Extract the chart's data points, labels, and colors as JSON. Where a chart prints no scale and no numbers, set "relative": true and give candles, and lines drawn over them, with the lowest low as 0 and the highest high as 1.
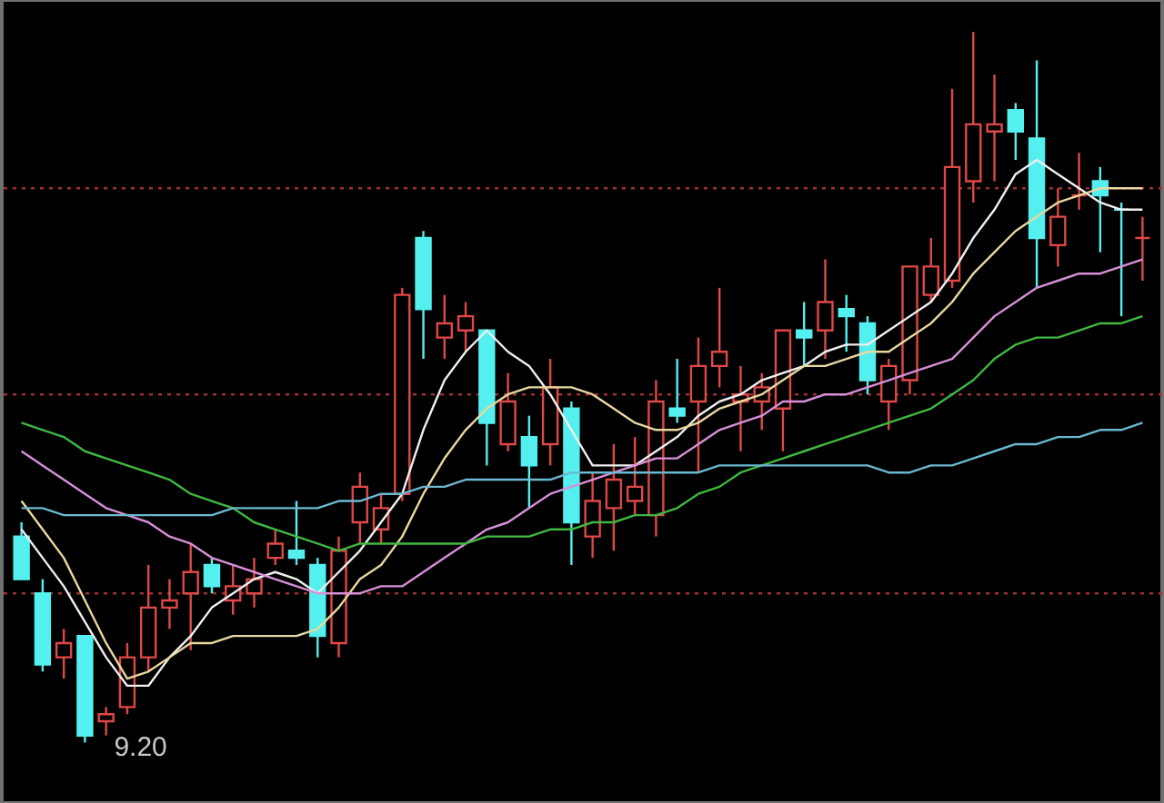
{
  "chart_data": {
    "type": "candlestick",
    "relative": true,
    "categories": [
      null,
      null,
      null,
      null,
      null,
      null,
      null,
      null,
      null,
      null,
      null,
      null,
      null,
      null,
      null,
      null,
      null,
      null,
      null,
      null,
      null,
      null,
      null,
      null,
      null,
      null,
      null,
      null,
      null,
      null,
      null,
      null,
      null,
      null,
      null,
      null,
      null,
      null,
      null,
      null,
      null,
      null,
      null,
      null,
      null,
      null,
      null,
      null,
      null,
      null,
      null,
      null,
      null,
      null
    ],
    "ohlc": [
      [
        0.29,
        0.31,
        0.23,
        0.23
      ],
      [
        0.21,
        0.23,
        0.1,
        0.11
      ],
      [
        0.12,
        0.16,
        0.09,
        0.14
      ],
      [
        0.15,
        0.15,
        0,
        0.01
      ],
      [
        0.03,
        0.05,
        0.01,
        0.04
      ],
      [
        0.05,
        0.14,
        0.04,
        0.12
      ],
      [
        0.12,
        0.25,
        0.1,
        0.19
      ],
      [
        0.19,
        0.23,
        0.16,
        0.2
      ],
      [
        0.21,
        0.28,
        0.13,
        0.24
      ],
      [
        0.25,
        0.26,
        0.21,
        0.22
      ],
      [
        0.2,
        0.25,
        0.18,
        0.22
      ],
      [
        0.21,
        0.26,
        0.19,
        0.23
      ],
      [
        0.26,
        0.3,
        0.25,
        0.28
      ],
      [
        0.27,
        0.34,
        0.25,
        0.26
      ],
      [
        0.25,
        0.26,
        0.12,
        0.15
      ],
      [
        0.14,
        0.29,
        0.12,
        0.27
      ],
      [
        0.31,
        0.38,
        0.28,
        0.36
      ],
      [
        0.3,
        0.35,
        0.28,
        0.33
      ],
      [
        0.35,
        0.64,
        0.34,
        0.63
      ],
      [
        0.71,
        0.72,
        0.54,
        0.61
      ],
      [
        0.57,
        0.63,
        0.54,
        0.59
      ],
      [
        0.58,
        0.62,
        0.55,
        0.6
      ],
      [
        0.58,
        0.58,
        0.39,
        0.45
      ],
      [
        0.42,
        0.52,
        0.41,
        0.48
      ],
      [
        0.43,
        0.46,
        0.33,
        0.39
      ],
      [
        0.42,
        0.54,
        0.39,
        0.5
      ],
      [
        0.47,
        0.48,
        0.25,
        0.31
      ],
      [
        0.29,
        0.38,
        0.26,
        0.34
      ],
      [
        0.33,
        0.42,
        0.27,
        0.37
      ],
      [
        0.34,
        0.43,
        0.32,
        0.36
      ],
      [
        0.32,
        0.51,
        0.29,
        0.48
      ],
      [
        0.47,
        0.54,
        0.45,
        0.46
      ],
      [
        0.48,
        0.57,
        0.38,
        0.53
      ],
      [
        0.53,
        0.64,
        0.5,
        0.55
      ],
      [
        0.48,
        0.53,
        0.41,
        0.49
      ],
      [
        0.48,
        0.52,
        0.44,
        0.5
      ],
      [
        0.47,
        0.58,
        0.41,
        0.58
      ],
      [
        0.58,
        0.62,
        0.53,
        0.57
      ],
      [
        0.58,
        0.68,
        0.54,
        0.62
      ],
      [
        0.61,
        0.63,
        0.55,
        0.6
      ],
      [
        0.59,
        0.6,
        0.49,
        0.51
      ],
      [
        0.48,
        0.54,
        0.44,
        0.53
      ],
      [
        0.51,
        0.67,
        0.49,
        0.67
      ],
      [
        0.63,
        0.71,
        0.62,
        0.67
      ],
      [
        0.65,
        0.92,
        0.64,
        0.81
      ],
      [
        0.79,
        1,
        0.76,
        0.87
      ],
      [
        0.86,
        0.94,
        0.79,
        0.87
      ],
      [
        0.89,
        0.9,
        0.82,
        0.86
      ],
      [
        0.85,
        0.96,
        0.64,
        0.71
      ],
      [
        0.7,
        0.78,
        0.67,
        0.74
      ],
      [
        0.77,
        0.83,
        0.75,
        0.77
      ],
      [
        0.79,
        0.81,
        0.69,
        0.77
      ],
      [
        0.75,
        0.76,
        0.6,
        0.75
      ],
      [
        0.71,
        0.74,
        0.65,
        0.71
      ]
    ],
    "colors": [
      "#54f0f0",
      "#54f0f0",
      "#e04848",
      "#54f0f0",
      "#e04848",
      "#e04848",
      "#e04848",
      "#e04848",
      "#e04848",
      "#54f0f0",
      "#e04848",
      "#e04848",
      "#e04848",
      "#54f0f0",
      "#54f0f0",
      "#e04848",
      "#e04848",
      "#e04848",
      "#e04848",
      "#54f0f0",
      "#e04848",
      "#e04848",
      "#54f0f0",
      "#e04848",
      "#54f0f0",
      "#e04848",
      "#54f0f0",
      "#e04848",
      "#e04848",
      "#e04848",
      "#e04848",
      "#54f0f0",
      "#e04848",
      "#e04848",
      "#e04848",
      "#e04848",
      "#e04848",
      "#54f0f0",
      "#e04848",
      "#54f0f0",
      "#54f0f0",
      "#e04848",
      "#e04848",
      "#e04848",
      "#e04848",
      "#e04848",
      "#e04848",
      "#54f0f0",
      "#54f0f0",
      "#e04848",
      "#e04848",
      "#54f0f0",
      "#54f0f0",
      "#e04848"
    ],
    "series": [
      {
        "type": "line",
        "color": "#f0f0f0",
        "values": [
          0.3,
          0.26,
          0.22,
          0.17,
          0.12,
          0.08,
          0.08,
          0.12,
          0.15,
          0.19,
          0.21,
          0.23,
          0.24,
          0.23,
          0.21,
          0.24,
          0.27,
          0.31,
          0.35,
          0.44,
          0.51,
          0.55,
          0.58,
          0.55,
          0.53,
          0.49,
          0.44,
          0.39,
          0.39,
          0.39,
          0.41,
          0.43,
          0.46,
          0.48,
          0.49,
          0.51,
          0.52,
          0.53,
          0.55,
          0.56,
          0.56,
          0.58,
          0.6,
          0.62,
          0.66,
          0.71,
          0.75,
          0.8,
          0.82,
          0.8,
          0.78,
          0.76,
          0.75,
          0.75
        ]
      },
      {
        "type": "line",
        "color": "#e8d8a0",
        "values": [
          0.34,
          0.3,
          0.26,
          0.2,
          0.14,
          0.09,
          0.1,
          0.12,
          0.14,
          0.14,
          0.15,
          0.15,
          0.15,
          0.15,
          0.16,
          0.19,
          0.23,
          0.25,
          0.29,
          0.35,
          0.4,
          0.44,
          0.47,
          0.49,
          0.5,
          0.5,
          0.5,
          0.49,
          0.47,
          0.45,
          0.44,
          0.44,
          0.45,
          0.47,
          0.48,
          0.49,
          0.51,
          0.53,
          0.53,
          0.54,
          0.55,
          0.55,
          0.57,
          0.59,
          0.62,
          0.66,
          0.69,
          0.72,
          0.74,
          0.76,
          0.77,
          0.78,
          0.78,
          0.78
        ]
      },
      {
        "type": "line",
        "color": "#d890d8",
        "values": [
          0.41,
          0.39,
          0.37,
          0.35,
          0.33,
          0.32,
          0.31,
          0.29,
          0.28,
          0.26,
          0.25,
          0.24,
          0.23,
          0.22,
          0.21,
          0.21,
          0.21,
          0.22,
          0.22,
          0.24,
          0.26,
          0.28,
          0.3,
          0.31,
          0.33,
          0.35,
          0.36,
          0.37,
          0.38,
          0.39,
          0.4,
          0.4,
          0.42,
          0.44,
          0.45,
          0.46,
          0.48,
          0.48,
          0.49,
          0.49,
          0.5,
          0.51,
          0.52,
          0.53,
          0.54,
          0.57,
          0.6,
          0.62,
          0.64,
          0.65,
          0.66,
          0.66,
          0.67,
          0.68
        ]
      },
      {
        "type": "line",
        "color": "#40b840",
        "values": [
          0.45,
          0.44,
          0.43,
          0.41,
          0.4,
          0.39,
          0.38,
          0.37,
          0.35,
          0.34,
          0.33,
          0.31,
          0.3,
          0.29,
          0.28,
          0.27,
          0.28,
          0.28,
          0.28,
          0.28,
          0.28,
          0.28,
          0.29,
          0.29,
          0.29,
          0.3,
          0.3,
          0.31,
          0.31,
          0.32,
          0.32,
          0.33,
          0.35,
          0.36,
          0.38,
          0.39,
          0.4,
          0.41,
          0.42,
          0.43,
          0.44,
          0.45,
          0.46,
          0.47,
          0.49,
          0.51,
          0.54,
          0.56,
          0.57,
          0.57,
          0.58,
          0.59,
          0.59,
          0.6
        ]
      },
      {
        "type": "line",
        "color": "#6cb8d0",
        "values": [
          0.33,
          0.33,
          0.32,
          0.32,
          0.32,
          0.32,
          0.32,
          0.32,
          0.32,
          0.32,
          0.33,
          0.33,
          0.33,
          0.33,
          0.33,
          0.34,
          0.34,
          0.35,
          0.35,
          0.36,
          0.36,
          0.37,
          0.37,
          0.37,
          0.37,
          0.37,
          0.38,
          0.38,
          0.38,
          0.38,
          0.38,
          0.38,
          0.38,
          0.39,
          0.39,
          0.39,
          0.39,
          0.39,
          0.39,
          0.39,
          0.39,
          0.38,
          0.38,
          0.39,
          0.39,
          0.4,
          0.41,
          0.42,
          0.42,
          0.43,
          0.43,
          0.44,
          0.44,
          0.45
        ]
      }
    ],
    "ref_lines": [
      {
        "axis": "y",
        "value": 0.78,
        "color": "#a03030",
        "line_style": "dotted"
      },
      {
        "axis": "y",
        "value": 0.49,
        "color": "#a03030",
        "line_style": "dotted"
      },
      {
        "axis": "y",
        "value": 0.21,
        "color": "#a03030",
        "line_style": "dotted"
      }
    ],
    "annotations": [
      "9.20"
    ]
  }
}
